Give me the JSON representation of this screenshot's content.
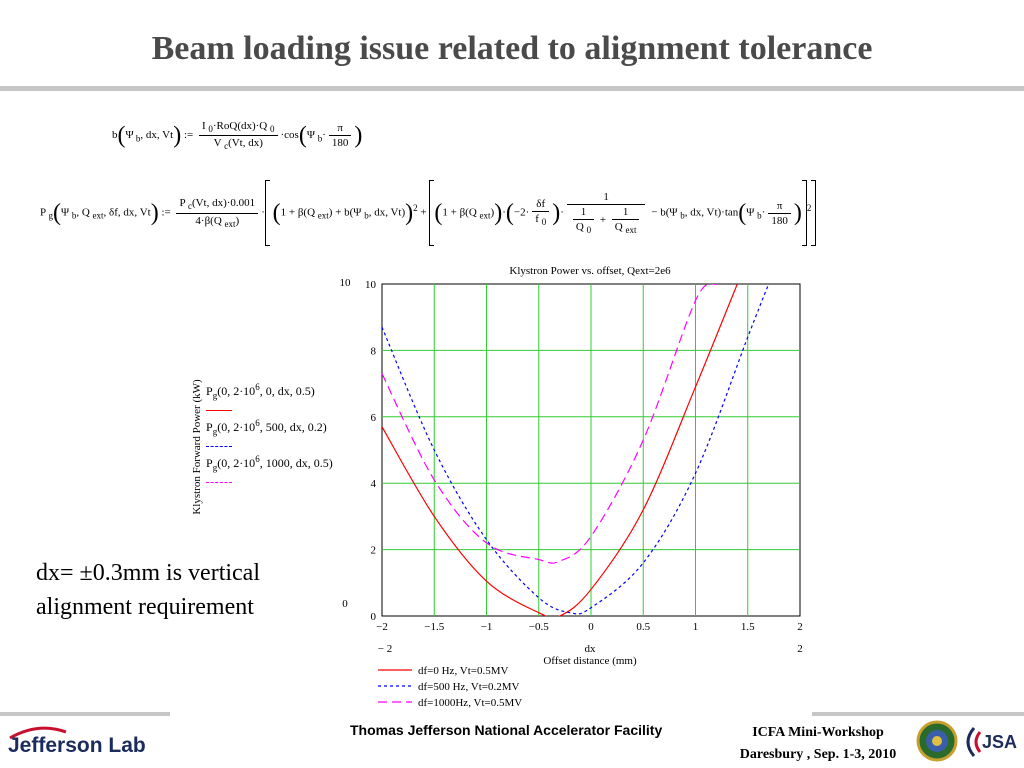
{
  "slide": {
    "title": "Beam loading issue related to alignment tolerance",
    "note_line1": "dx= ±0.3mm is vertical",
    "note_line2": "alignment requirement",
    "footer_center": "Thomas Jefferson National Accelerator Facility",
    "footer_right_line1": "ICFA Mini-Workshop",
    "footer_right_line2": "Daresbury , Sep. 1-3, 2010",
    "logo_text": "Jefferson Lab",
    "logo_jsa_text": "JSA"
  },
  "legend_key": {
    "row1": "P",
    "row1_sub": "g",
    "row1_args": "0, 2·10",
    "row1_exp": "6",
    "row1_rest": ", 0, dx, 0.5",
    "row2_args": "0, 2·10",
    "row2_rest": ", 500, dx, 0.2",
    "row3_args": "0, 2·10",
    "row3_rest": ", 1000, dx, 0.5"
  },
  "colors": {
    "grid": "#33cc33",
    "series_1": "#ff0000",
    "series_2": "#0000ff",
    "series_3": "#ff00ff",
    "title": "#4a4a4a",
    "rule": "#c6c6c6"
  },
  "chart_data": {
    "type": "line",
    "title": "Klystron Power vs. offset, Qext=2e6",
    "xlabel": "Offset distance (mm)",
    "xlabel_var": "dx",
    "ylabel": "Klystron Forward Power (kW)",
    "xlim": [
      -2,
      2
    ],
    "ylim": [
      0,
      10
    ],
    "x_ticks": [
      "-2",
      "-1.5",
      "-1",
      "-0.5",
      "0",
      "0.5",
      "1",
      "1.5",
      "2"
    ],
    "y_ticks": [
      "0",
      "2",
      "4",
      "6",
      "8",
      "10"
    ],
    "y_outer_max": "10",
    "y_outer_min": "0",
    "x_outer_min": "− 2",
    "x_outer_max": "2",
    "grid": true,
    "legend_position": "bottom",
    "series": [
      {
        "name": "df=0 Hz, Vt=0.5MV",
        "style": "solid",
        "x": [
          -2,
          -1.5,
          -1,
          -0.5,
          -0.3,
          0,
          0.5,
          1,
          1.4
        ],
        "y": [
          5.7,
          3.0,
          1.05,
          0.1,
          0.0,
          0.8,
          3.2,
          6.9,
          10.0
        ]
      },
      {
        "name": "df=500 Hz, Vt=0.2MV",
        "style": "dashed",
        "x": [
          -2,
          -1.5,
          -1,
          -0.5,
          -0.2,
          0,
          0.5,
          1,
          1.5,
          1.7
        ],
        "y": [
          8.7,
          5.0,
          2.3,
          0.55,
          0.1,
          0.25,
          1.6,
          4.3,
          8.4,
          10.0
        ]
      },
      {
        "name": "df=1000Hz, Vt=0.5MV",
        "style": "dash-long",
        "x": [
          -2,
          -1.5,
          -1,
          -0.5,
          -0.3,
          0,
          0.5,
          1,
          1.2
        ],
        "y": [
          7.3,
          4.1,
          2.2,
          1.7,
          1.65,
          2.4,
          5.3,
          9.5,
          10.0
        ]
      }
    ]
  }
}
